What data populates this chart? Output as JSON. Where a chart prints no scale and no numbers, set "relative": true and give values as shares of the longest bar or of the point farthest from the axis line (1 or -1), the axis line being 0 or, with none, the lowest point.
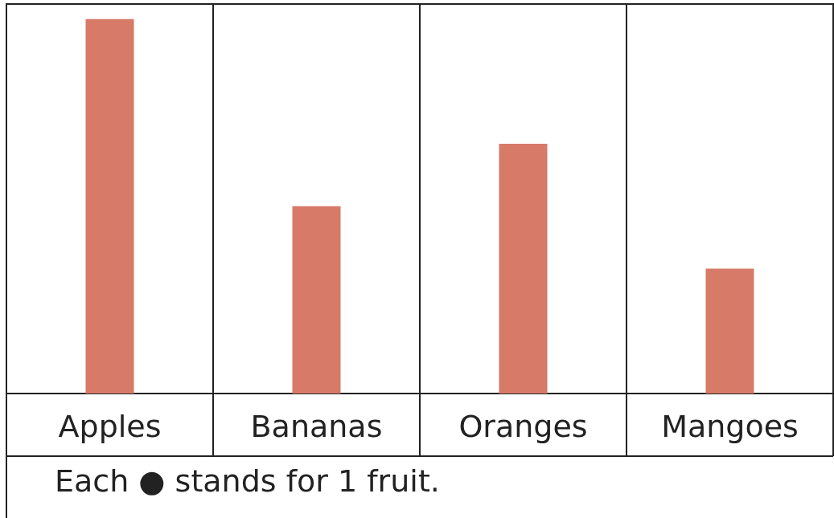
{
  "chart_data": {
    "type": "bar",
    "relative": true,
    "categories": [
      "Apples",
      "Bananas",
      "Oranges",
      "Mangoes"
    ],
    "values": [
      1,
      0.5,
      0.6667,
      0.3333
    ],
    "color": "#d77a68",
    "annotations": [
      "Each ● stands for 1 fruit."
    ]
  }
}
